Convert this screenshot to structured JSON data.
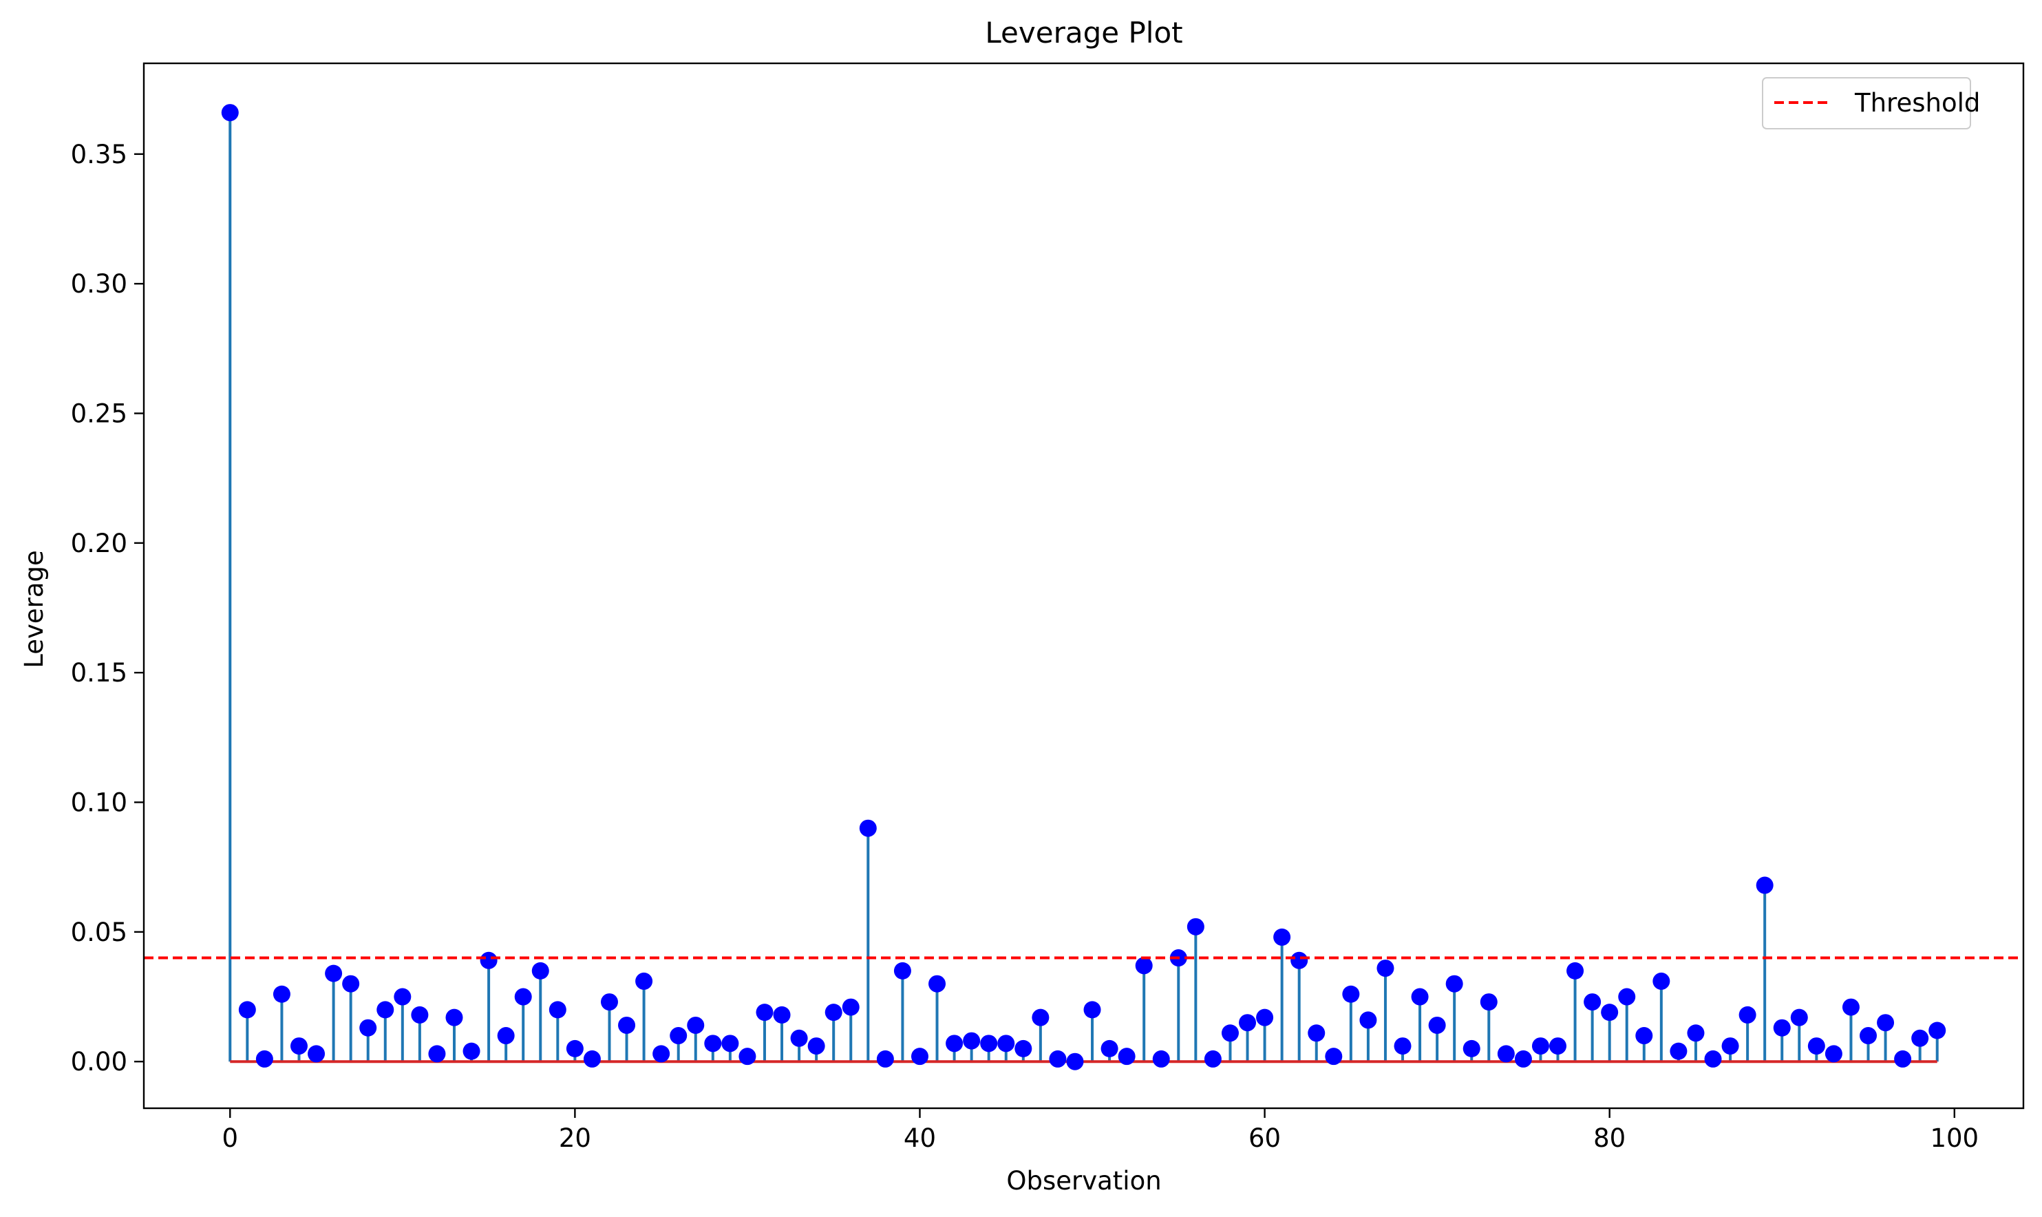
{
  "chart_data": {
    "type": "stem",
    "title": "Leverage Plot",
    "xlabel": "Observation",
    "ylabel": "Leverage",
    "xlim": [
      -5,
      104
    ],
    "ylim": [
      -0.018,
      0.385
    ],
    "xticks": [
      0,
      20,
      40,
      60,
      80,
      100
    ],
    "xtick_labels": [
      "0",
      "20",
      "40",
      "60",
      "80",
      "100"
    ],
    "yticks": [
      0.0,
      0.05,
      0.1,
      0.15,
      0.2,
      0.25,
      0.3,
      0.35
    ],
    "ytick_labels": [
      "0.00",
      "0.05",
      "0.10",
      "0.15",
      "0.20",
      "0.25",
      "0.30",
      "0.35"
    ],
    "grid": false,
    "legend": {
      "position": "top-right",
      "entries": [
        "Threshold"
      ]
    },
    "threshold": {
      "name": "Threshold",
      "value": 0.04,
      "style": "dashed",
      "color": "#ff0000"
    },
    "baseline": {
      "value": 0.0,
      "color": "#d62728"
    },
    "stem_color": "#1f77b4",
    "marker_color": "#0000ff",
    "x": [
      0,
      1,
      2,
      3,
      4,
      5,
      6,
      7,
      8,
      9,
      10,
      11,
      12,
      13,
      14,
      15,
      16,
      17,
      18,
      19,
      20,
      21,
      22,
      23,
      24,
      25,
      26,
      27,
      28,
      29,
      30,
      31,
      32,
      33,
      34,
      35,
      36,
      37,
      38,
      39,
      40,
      41,
      42,
      43,
      44,
      45,
      46,
      47,
      48,
      49,
      50,
      51,
      52,
      53,
      54,
      55,
      56,
      57,
      58,
      59,
      60,
      61,
      62,
      63,
      64,
      65,
      66,
      67,
      68,
      69,
      70,
      71,
      72,
      73,
      74,
      75,
      76,
      77,
      78,
      79,
      80,
      81,
      82,
      83,
      84,
      85,
      86,
      87,
      88,
      89,
      90,
      91,
      92,
      93,
      94,
      95,
      96,
      97,
      98,
      99
    ],
    "values": [
      0.366,
      0.02,
      0.001,
      0.026,
      0.006,
      0.003,
      0.034,
      0.03,
      0.013,
      0.02,
      0.025,
      0.018,
      0.003,
      0.017,
      0.004,
      0.039,
      0.01,
      0.025,
      0.035,
      0.02,
      0.005,
      0.001,
      0.023,
      0.014,
      0.031,
      0.003,
      0.01,
      0.014,
      0.007,
      0.007,
      0.002,
      0.019,
      0.018,
      0.009,
      0.006,
      0.019,
      0.021,
      0.09,
      0.001,
      0.035,
      0.002,
      0.03,
      0.007,
      0.008,
      0.007,
      0.007,
      0.005,
      0.017,
      0.001,
      0.0,
      0.02,
      0.005,
      0.002,
      0.037,
      0.001,
      0.04,
      0.052,
      0.001,
      0.011,
      0.015,
      0.017,
      0.048,
      0.039,
      0.011,
      0.002,
      0.026,
      0.016,
      0.036,
      0.006,
      0.025,
      0.014,
      0.03,
      0.005,
      0.023,
      0.003,
      0.001,
      0.006,
      0.006,
      0.035,
      0.023,
      0.019,
      0.025,
      0.01,
      0.031,
      0.004,
      0.011,
      0.001,
      0.006,
      0.018,
      0.068,
      0.013,
      0.017,
      0.006,
      0.003,
      0.021,
      0.01,
      0.015,
      0.001,
      0.009,
      0.012
    ]
  }
}
